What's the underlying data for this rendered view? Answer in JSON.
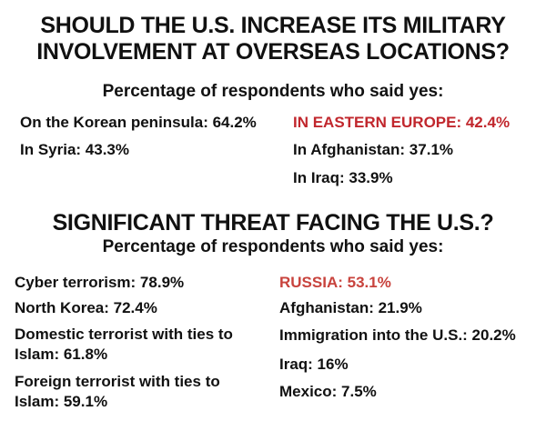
{
  "section1": {
    "title_line1": "SHOULD THE U.S. INCREASE ITS MILITARY",
    "title_line2": "INVOLVEMENT AT OVERSEAS LOCATIONS?",
    "subtitle": "Percentage of respondents who said yes:",
    "left_items": [
      "On the Korean peninsula: 64.2%",
      "In Syria: 43.3%"
    ],
    "right_items": [
      "IN EASTERN EUROPE: 42.4%",
      "In Afghanistan: 37.1%",
      "In Iraq: 33.9%"
    ]
  },
  "section2": {
    "title": "SIGNIFICANT THREAT FACING THE U.S.?",
    "subtitle": "Percentage of respondents who said yes:",
    "left_items": [
      "Cyber terrorism: 78.9%",
      "North Korea: 72.4%",
      "Domestic terrorist with ties to Islam: 61.8%",
      "Foreign terrorist with ties to Islam: 59.1%"
    ],
    "right_items": [
      "RUSSIA: 53.1%",
      "Afghanistan: 21.9%",
      "Immigration into the U.S.: 20.2%",
      "Iraq: 16%",
      "Mexico: 7.5%"
    ]
  },
  "colors": {
    "text": "#111111",
    "highlight": "#c1272d",
    "background": "#ffffff"
  }
}
